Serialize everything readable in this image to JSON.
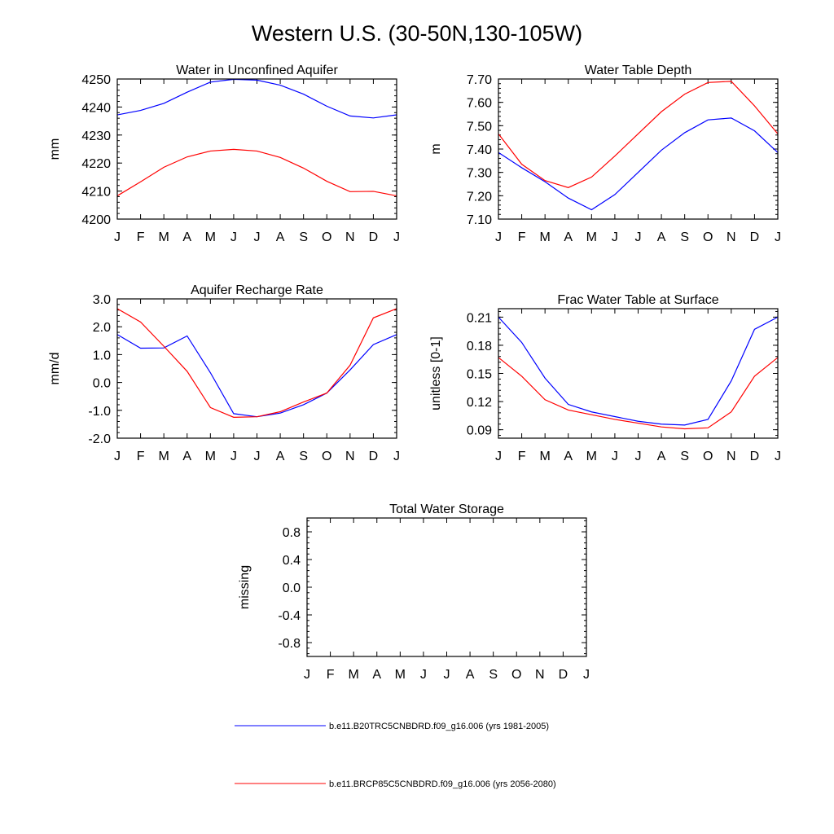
{
  "title": "Western U.S. (30-50N,130-105W)",
  "colors": {
    "series_1": "#0000ff",
    "series_2": "#ff0000",
    "axis": "#000000"
  },
  "legend": [
    {
      "label": "b.e11.B20TRC5CNBDRD.f09_g16.006 (yrs 1981-2005)",
      "color": "#0000ff"
    },
    {
      "label": "b.e11.BRCP85C5CNBDRD.f09_g16.006 (yrs 2056-2080)",
      "color": "#ff0000"
    }
  ],
  "chart_data": [
    {
      "type": "line",
      "title": "Water in Unconfined Aquifer",
      "ylabel": "mm",
      "categories": [
        "J",
        "F",
        "M",
        "A",
        "M",
        "J",
        "J",
        "A",
        "S",
        "O",
        "N",
        "D",
        "J"
      ],
      "ylim": [
        4200,
        4250
      ],
      "yticks": [
        "4200",
        "4210",
        "4220",
        "4230",
        "4240",
        "4250"
      ],
      "series": [
        {
          "name": "b.e11.B20TRC5CNBDRD.f09_g16.006 (yrs 1981-2005)",
          "values": [
            4237.2,
            4238.8,
            4241.3,
            4245.3,
            4248.9,
            4249.9,
            4249.6,
            4247.8,
            4244.6,
            4240.3,
            4236.8,
            4236.1,
            4237.2
          ]
        },
        {
          "name": "b.e11.BRCP85C5CNBDRD.f09_g16.006 (yrs 2056-2080)",
          "values": [
            4208.3,
            4213.3,
            4218.5,
            4222.2,
            4224.3,
            4224.9,
            4224.3,
            4222.0,
            4218.2,
            4213.5,
            4209.8,
            4209.9,
            4208.3
          ]
        }
      ]
    },
    {
      "type": "line",
      "title": "Water Table Depth",
      "ylabel": "m",
      "categories": [
        "J",
        "F",
        "M",
        "A",
        "M",
        "J",
        "J",
        "A",
        "S",
        "O",
        "N",
        "D",
        "J"
      ],
      "ylim": [
        7.1,
        7.7
      ],
      "yticks": [
        "7.10",
        "7.20",
        "7.30",
        "7.40",
        "7.50",
        "7.60",
        "7.70"
      ],
      "series": [
        {
          "name": "b.e11.B20TRC5CNBDRD.f09_g16.006 (yrs 1981-2005)",
          "values": [
            7.385,
            7.32,
            7.26,
            7.19,
            7.14,
            7.205,
            7.3,
            7.395,
            7.47,
            7.525,
            7.533,
            7.478,
            7.385
          ]
        },
        {
          "name": "b.e11.BRCP85C5CNBDRD.f09_g16.006 (yrs 2056-2080)",
          "values": [
            7.465,
            7.335,
            7.265,
            7.235,
            7.28,
            7.37,
            7.465,
            7.56,
            7.635,
            7.685,
            7.69,
            7.585,
            7.465
          ]
        }
      ]
    },
    {
      "type": "line",
      "title": "Aquifer Recharge Rate",
      "ylabel": "mm/d",
      "categories": [
        "J",
        "F",
        "M",
        "A",
        "M",
        "J",
        "J",
        "A",
        "S",
        "O",
        "N",
        "D",
        "J"
      ],
      "ylim": [
        -2.0,
        3.0
      ],
      "yticks": [
        "-2.0",
        "-1.0",
        "0.0",
        "1.0",
        "2.0",
        "3.0"
      ],
      "series": [
        {
          "name": "b.e11.B20TRC5CNBDRD.f09_g16.006 (yrs 1981-2005)",
          "values": [
            1.72,
            1.23,
            1.24,
            1.67,
            0.35,
            -1.12,
            -1.23,
            -1.1,
            -0.8,
            -0.38,
            0.45,
            1.36,
            1.72
          ]
        },
        {
          "name": "b.e11.BRCP85C5CNBDRD.f09_g16.006 (yrs 2056-2080)",
          "values": [
            2.65,
            2.17,
            1.3,
            0.4,
            -0.9,
            -1.25,
            -1.23,
            -1.05,
            -0.7,
            -0.38,
            0.62,
            2.32,
            2.65
          ]
        }
      ]
    },
    {
      "type": "line",
      "title": "Frac Water Table at Surface",
      "ylabel": "unitless [0-1]",
      "categories": [
        "J",
        "F",
        "M",
        "A",
        "M",
        "J",
        "J",
        "A",
        "S",
        "O",
        "N",
        "D",
        "J"
      ],
      "ylim": [
        0.081,
        0.219
      ],
      "yticks": [
        "0.09",
        "0.12",
        "0.15",
        "0.18",
        "0.21"
      ],
      "series": [
        {
          "name": "b.e11.B20TRC5CNBDRD.f09_g16.006 (yrs 1981-2005)",
          "values": [
            0.21,
            0.183,
            0.145,
            0.117,
            0.109,
            0.104,
            0.099,
            0.096,
            0.095,
            0.101,
            0.142,
            0.197,
            0.21
          ]
        },
        {
          "name": "b.e11.BRCP85C5CNBDRD.f09_g16.006 (yrs 2056-2080)",
          "values": [
            0.167,
            0.147,
            0.122,
            0.111,
            0.106,
            0.101,
            0.097,
            0.093,
            0.091,
            0.092,
            0.109,
            0.147,
            0.167
          ]
        }
      ]
    },
    {
      "type": "line",
      "title": "Total Water Storage",
      "ylabel": "missing",
      "categories": [
        "J",
        "F",
        "M",
        "A",
        "M",
        "J",
        "J",
        "A",
        "S",
        "O",
        "N",
        "D",
        "J"
      ],
      "ylim": [
        -1.0,
        1.0
      ],
      "yticks": [
        "-0.8",
        "-0.4",
        "0.0",
        "0.4",
        "0.8"
      ],
      "series": []
    }
  ]
}
